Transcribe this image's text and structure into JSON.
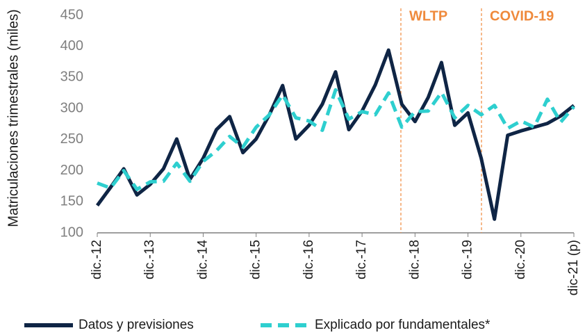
{
  "chart_data": {
    "type": "line",
    "y_label": "Matriculaciones trimestrales (miles)",
    "categories": [
      "dic.-12",
      null,
      null,
      null,
      "dic.-13",
      null,
      null,
      null,
      "dic.-14",
      null,
      null,
      null,
      "dic.-15",
      null,
      null,
      null,
      "dic.-16",
      null,
      null,
      null,
      "dic.-17",
      null,
      null,
      null,
      "dic.-18",
      null,
      null,
      null,
      "dic.-19",
      null,
      null,
      null,
      "dic.-20",
      null,
      null,
      null,
      "dic-21 (p)"
    ],
    "series": [
      {
        "name": "Datos y previsiones",
        "color": "#0f2545",
        "dash": false,
        "values": [
          144,
          173,
          203,
          161,
          178,
          203,
          251,
          186,
          220,
          266,
          287,
          229,
          251,
          290,
          337,
          251,
          273,
          307,
          359,
          266,
          296,
          338,
          394,
          307,
          279,
          318,
          374,
          273,
          293,
          220,
          122,
          257,
          264,
          270,
          276,
          288,
          305
        ]
      },
      {
        "name": "Explicado por fundamentales*",
        "color": "#2ecfcf",
        "dash": true,
        "values": [
          180,
          172,
          200,
          170,
          182,
          183,
          212,
          183,
          215,
          232,
          255,
          238,
          270,
          290,
          322,
          285,
          280,
          265,
          330,
          283,
          295,
          290,
          325,
          270,
          295,
          296,
          326,
          285,
          305,
          290,
          305,
          268,
          280,
          270,
          315,
          278,
          303
        ]
      }
    ],
    "annotations": [
      {
        "text": "WLTP"
      },
      {
        "text": "COVID-19"
      }
    ],
    "ylim": [
      100,
      450
    ],
    "yticks": [
      100,
      150,
      200,
      250,
      300,
      350,
      400,
      450
    ],
    "grid": false,
    "legend": "bottom"
  }
}
